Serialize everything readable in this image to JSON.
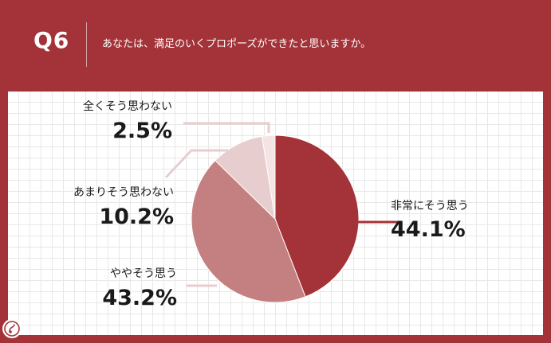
{
  "header": {
    "question_number": "Q6",
    "question_text": "あなたは、満足のいくプロポーズができたと思いますか。"
  },
  "logo": {
    "icon": "brand-logo-icon"
  },
  "colors": {
    "header_bg": "#a33338",
    "slice_1": "#a33338",
    "slice_2": "#c47f81",
    "slice_3": "#e8cdce",
    "slice_4": "#f4e4e4",
    "leader": "#e8cdce",
    "leader_main": "#a33338"
  },
  "chart_data": {
    "type": "pie",
    "title": "あなたは、満足のいくプロポーズができたと思いますか。",
    "labels": [
      "非常にそう思う",
      "ややそう思う",
      "あまりそう思わない",
      "全くそう思わない"
    ],
    "values": [
      44.1,
      43.2,
      10.2,
      2.5
    ],
    "value_labels": [
      "44.1%",
      "43.2%",
      "10.2%",
      "2.5%"
    ],
    "legend": "none",
    "grid": false
  }
}
